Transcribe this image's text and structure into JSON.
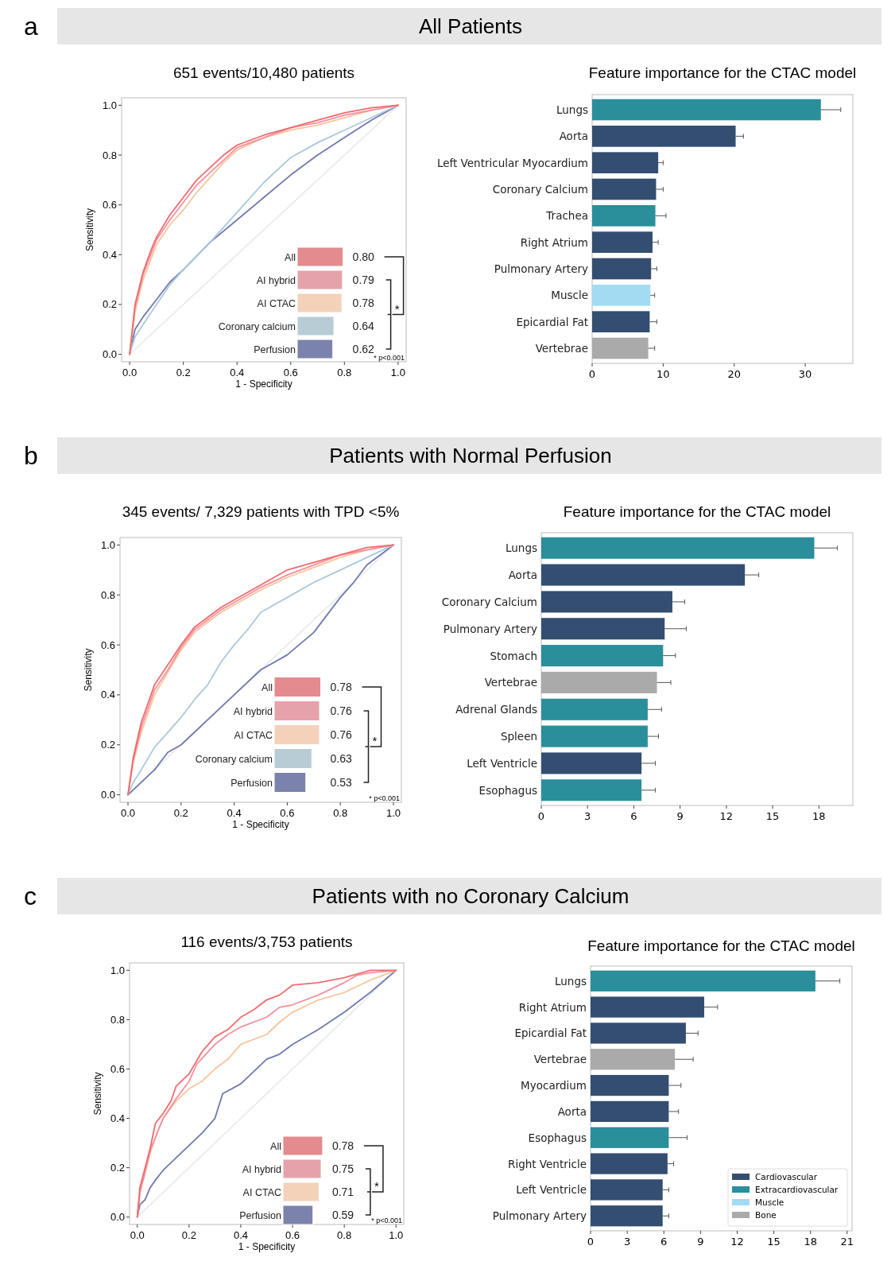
{
  "chart_data": [
    {
      "type": "line",
      "title": "651 events/10,480 patients",
      "xlabel": "1 - Specificity",
      "ylabel": "Sensitivity",
      "annotations": [
        "a",
        "All Patients"
      ],
      "xlim": [
        -0.03,
        1.03
      ],
      "ylim": [
        -0.03,
        1.03
      ],
      "xticks": [
        {
          "value": 0,
          "label": "0.0"
        },
        {
          "value": 0.2,
          "label": "0.2"
        },
        {
          "value": 0.4,
          "label": "0.4"
        },
        {
          "value": 0.6,
          "label": "0.6"
        },
        {
          "value": 0.8,
          "label": "0.8"
        },
        {
          "value": 1,
          "label": "1.0"
        }
      ],
      "yticks": [
        {
          "value": 0,
          "label": "0.0"
        },
        {
          "value": 0.2,
          "label": "0.2"
        },
        {
          "value": 0.4,
          "label": "0.4"
        },
        {
          "value": 0.6,
          "label": "0.6"
        },
        {
          "value": 0.8,
          "label": "0.8"
        },
        {
          "value": 1,
          "label": "1.0"
        }
      ],
      "series": [
        {
          "color": "#ebebeb",
          "x": [
            0,
            1
          ],
          "values": [
            0,
            1
          ]
        },
        {
          "color": "#7078b0",
          "x": [
            0,
            0.02,
            0.05,
            0.1,
            0.15,
            0.2,
            0.3,
            0.4,
            0.5,
            0.6,
            0.7,
            0.8,
            0.9,
            1
          ],
          "values": [
            0,
            0.1,
            0.15,
            0.22,
            0.29,
            0.34,
            0.45,
            0.54,
            0.63,
            0.72,
            0.8,
            0.87,
            0.94,
            1
          ]
        },
        {
          "color": "#a9c8da",
          "x": [
            0,
            0.02,
            0.05,
            0.1,
            0.15,
            0.2,
            0.3,
            0.4,
            0.5,
            0.6,
            0.7,
            0.8,
            0.9,
            1
          ],
          "values": [
            0,
            0.07,
            0.12,
            0.2,
            0.28,
            0.34,
            0.45,
            0.57,
            0.69,
            0.79,
            0.85,
            0.9,
            0.95,
            1
          ]
        },
        {
          "color": "#f8c49c",
          "x": [
            0,
            0.02,
            0.05,
            0.1,
            0.15,
            0.2,
            0.25,
            0.3,
            0.35,
            0.4,
            0.5,
            0.6,
            0.7,
            0.8,
            0.9,
            1
          ],
          "values": [
            0,
            0.17,
            0.3,
            0.44,
            0.52,
            0.58,
            0.65,
            0.71,
            0.77,
            0.82,
            0.87,
            0.9,
            0.92,
            0.95,
            0.98,
            1
          ]
        },
        {
          "color": "#f3909e",
          "x": [
            0,
            0.02,
            0.05,
            0.1,
            0.15,
            0.2,
            0.25,
            0.3,
            0.35,
            0.4,
            0.5,
            0.6,
            0.7,
            0.8,
            0.9,
            1
          ],
          "values": [
            0,
            0.19,
            0.32,
            0.46,
            0.54,
            0.61,
            0.68,
            0.73,
            0.78,
            0.83,
            0.87,
            0.91,
            0.93,
            0.96,
            0.98,
            1
          ]
        },
        {
          "color": "#f26a6e",
          "x": [
            0,
            0.02,
            0.05,
            0.08,
            0.1,
            0.15,
            0.2,
            0.25,
            0.3,
            0.35,
            0.4,
            0.5,
            0.6,
            0.7,
            0.8,
            0.9,
            1
          ],
          "values": [
            0,
            0.2,
            0.33,
            0.42,
            0.47,
            0.56,
            0.63,
            0.7,
            0.75,
            0.8,
            0.84,
            0.88,
            0.91,
            0.94,
            0.97,
            0.99,
            1
          ]
        }
      ]
    },
    {
      "type": "bar",
      "orientation": "horizontal",
      "categories": [
        "All",
        "AI hybrid",
        "AI CTAC",
        "Coronary calcium",
        "Perfusion"
      ],
      "values": [
        0.8,
        0.79,
        0.78,
        0.64,
        0.62
      ],
      "value_labels": [
        "0.80",
        "0.79",
        "0.78",
        "0.64",
        "0.62"
      ],
      "colors": [
        "#e38b8f",
        "#e6a2aa",
        "#f3d2b9",
        "#b8ccd6",
        "#7b83ac"
      ],
      "annotations": [
        "*",
        "* p<0.001"
      ]
    },
    {
      "type": "bar",
      "orientation": "horizontal",
      "title": "Feature importance for the CTAC model",
      "categories": [
        "Lungs",
        "Aorta",
        "Left Ventricular Myocardium",
        "Coronary Calcium",
        "Trachea",
        "Right Atrium",
        "Pulmonary Artery",
        "Muscle",
        "Epicardial Fat",
        "Vertebrae"
      ],
      "values": [
        32.2,
        20.2,
        9.3,
        9.0,
        8.9,
        8.5,
        8.3,
        8.2,
        8.1,
        7.9
      ],
      "errors": [
        2.8,
        1.1,
        0.7,
        1.0,
        1.5,
        0.8,
        0.8,
        0.6,
        1.0,
        0.9
      ],
      "colors": [
        "#2a8f9a",
        "#344e72",
        "#344e72",
        "#344e72",
        "#2a8f9a",
        "#344e72",
        "#344e72",
        "#a3dcf2",
        "#344e72",
        "#aaaaaa"
      ],
      "xlim": [
        0,
        36.7
      ],
      "xticks": [
        0,
        10,
        20,
        30
      ]
    },
    {
      "type": "line",
      "title": "345 events/ 7,329 patients with TPD <5%",
      "xlabel": "1 - Specificity",
      "ylabel": "Sensitivity",
      "annotations": [
        "b",
        "Patients with Normal Perfusion"
      ],
      "xlim": [
        -0.03,
        1.03
      ],
      "ylim": [
        -0.03,
        1.03
      ],
      "xticks": [
        {
          "value": 0,
          "label": "0.0"
        },
        {
          "value": 0.2,
          "label": "0.2"
        },
        {
          "value": 0.4,
          "label": "0.4"
        },
        {
          "value": 0.6,
          "label": "0.6"
        },
        {
          "value": 0.8,
          "label": "0.8"
        },
        {
          "value": 1,
          "label": "1.0"
        }
      ],
      "yticks": [
        {
          "value": 0,
          "label": "0.0"
        },
        {
          "value": 0.2,
          "label": "0.2"
        },
        {
          "value": 0.4,
          "label": "0.4"
        },
        {
          "value": 0.6,
          "label": "0.6"
        },
        {
          "value": 0.8,
          "label": "0.8"
        },
        {
          "value": 1,
          "label": "1.0"
        }
      ],
      "series": [
        {
          "color": "#ebebeb",
          "x": [
            0,
            1
          ],
          "values": [
            0,
            1
          ]
        },
        {
          "color": "#7078b0",
          "x": [
            0,
            0.05,
            0.1,
            0.15,
            0.2,
            0.3,
            0.4,
            0.5,
            0.6,
            0.7,
            0.75,
            0.8,
            0.85,
            0.9,
            0.95,
            1
          ],
          "values": [
            0,
            0.05,
            0.1,
            0.17,
            0.2,
            0.3,
            0.4,
            0.5,
            0.56,
            0.65,
            0.72,
            0.79,
            0.85,
            0.92,
            0.96,
            1
          ]
        },
        {
          "color": "#a9c8da",
          "x": [
            0,
            0.02,
            0.05,
            0.1,
            0.15,
            0.2,
            0.25,
            0.3,
            0.35,
            0.4,
            0.45,
            0.5,
            0.55,
            0.6,
            0.7,
            0.8,
            0.9,
            1
          ],
          "values": [
            0,
            0.05,
            0.1,
            0.19,
            0.25,
            0.31,
            0.38,
            0.44,
            0.53,
            0.6,
            0.66,
            0.73,
            0.76,
            0.79,
            0.85,
            0.9,
            0.95,
            1
          ]
        },
        {
          "color": "#f8c49c",
          "x": [
            0,
            0.02,
            0.05,
            0.1,
            0.15,
            0.2,
            0.25,
            0.3,
            0.35,
            0.4,
            0.5,
            0.6,
            0.7,
            0.8,
            0.9,
            1
          ],
          "values": [
            0,
            0.13,
            0.25,
            0.4,
            0.49,
            0.58,
            0.65,
            0.69,
            0.73,
            0.76,
            0.82,
            0.87,
            0.91,
            0.95,
            0.98,
            1
          ]
        },
        {
          "color": "#f3909e",
          "x": [
            0,
            0.02,
            0.05,
            0.1,
            0.15,
            0.2,
            0.25,
            0.3,
            0.35,
            0.4,
            0.5,
            0.6,
            0.7,
            0.8,
            0.9,
            1
          ],
          "values": [
            0,
            0.14,
            0.27,
            0.42,
            0.5,
            0.59,
            0.66,
            0.7,
            0.74,
            0.77,
            0.83,
            0.88,
            0.92,
            0.96,
            0.98,
            1
          ]
        },
        {
          "color": "#f26a6e",
          "x": [
            0,
            0.02,
            0.05,
            0.08,
            0.1,
            0.15,
            0.2,
            0.25,
            0.3,
            0.35,
            0.4,
            0.5,
            0.6,
            0.7,
            0.8,
            0.9,
            1
          ],
          "values": [
            0,
            0.15,
            0.29,
            0.38,
            0.44,
            0.52,
            0.6,
            0.67,
            0.71,
            0.75,
            0.78,
            0.84,
            0.9,
            0.93,
            0.96,
            0.99,
            1
          ]
        }
      ]
    },
    {
      "type": "bar",
      "orientation": "horizontal",
      "categories": [
        "All",
        "AI hybrid",
        "AI CTAC",
        "Coronary calcium",
        "Perfusion"
      ],
      "values": [
        0.78,
        0.76,
        0.76,
        0.63,
        0.53
      ],
      "value_labels": [
        "0.78",
        "0.76",
        "0.76",
        "0.63",
        "0.53"
      ],
      "colors": [
        "#e38b8f",
        "#e6a2aa",
        "#f3d2b9",
        "#b8ccd6",
        "#7b83ac"
      ],
      "annotations": [
        "*",
        "* p<0.001"
      ]
    },
    {
      "type": "bar",
      "orientation": "horizontal",
      "title": "Feature importance for the CTAC model",
      "categories": [
        "Lungs",
        "Aorta",
        "Coronary Calcium",
        "Pulmonary Artery",
        "Stomach",
        "Vertebrae",
        "Adrenal Glands",
        "Spleen",
        "Left Ventricle",
        "Esophagus"
      ],
      "values": [
        17.7,
        13.2,
        8.5,
        8.0,
        7.9,
        7.5,
        6.9,
        6.9,
        6.5,
        6.5
      ],
      "errors": [
        1.5,
        0.9,
        0.8,
        1.4,
        0.8,
        0.9,
        0.9,
        0.7,
        0.9,
        0.9
      ],
      "colors": [
        "#2a8f9a",
        "#344e72",
        "#344e72",
        "#344e72",
        "#2a8f9a",
        "#aaaaaa",
        "#2a8f9a",
        "#2a8f9a",
        "#344e72",
        "#2a8f9a"
      ],
      "xlim": [
        0,
        20.2
      ],
      "xticks": [
        0,
        3,
        6,
        9,
        12,
        15,
        18
      ]
    },
    {
      "type": "line",
      "title": "116 events/3,753 patients",
      "xlabel": "1 - Specificity",
      "ylabel": "Sensitivity",
      "annotations": [
        "c",
        "Patients with no Coronary Calcium"
      ],
      "xlim": [
        -0.03,
        1.03
      ],
      "ylim": [
        -0.03,
        1.03
      ],
      "xticks": [
        {
          "value": 0,
          "label": "0.0"
        },
        {
          "value": 0.2,
          "label": "0.2"
        },
        {
          "value": 0.4,
          "label": "0.4"
        },
        {
          "value": 0.6,
          "label": "0.6"
        },
        {
          "value": 0.8,
          "label": "0.8"
        },
        {
          "value": 1,
          "label": "1.0"
        }
      ],
      "yticks": [
        {
          "value": 0,
          "label": "0.0"
        },
        {
          "value": 0.2,
          "label": "0.2"
        },
        {
          "value": 0.4,
          "label": "0.4"
        },
        {
          "value": 0.6,
          "label": "0.6"
        },
        {
          "value": 0.8,
          "label": "0.8"
        },
        {
          "value": 1,
          "label": "1.0"
        }
      ],
      "series": [
        {
          "color": "#ebebeb",
          "x": [
            0,
            1
          ],
          "values": [
            0,
            1
          ]
        },
        {
          "color": "#7078b0",
          "x": [
            0,
            0.01,
            0.03,
            0.05,
            0.07,
            0.1,
            0.15,
            0.2,
            0.25,
            0.3,
            0.33,
            0.4,
            0.45,
            0.5,
            0.55,
            0.6,
            0.7,
            0.8,
            0.9,
            1
          ],
          "values": [
            0,
            0.05,
            0.07,
            0.12,
            0.15,
            0.19,
            0.24,
            0.29,
            0.34,
            0.4,
            0.5,
            0.54,
            0.59,
            0.64,
            0.66,
            0.7,
            0.76,
            0.83,
            0.91,
            1
          ]
        },
        {
          "color": "#f8c49c",
          "x": [
            0,
            0.01,
            0.03,
            0.05,
            0.08,
            0.1,
            0.15,
            0.2,
            0.25,
            0.3,
            0.35,
            0.4,
            0.5,
            0.55,
            0.6,
            0.7,
            0.8,
            0.9,
            1
          ],
          "values": [
            0,
            0.1,
            0.18,
            0.26,
            0.35,
            0.4,
            0.47,
            0.52,
            0.55,
            0.6,
            0.64,
            0.7,
            0.74,
            0.79,
            0.83,
            0.88,
            0.91,
            0.96,
            1
          ]
        },
        {
          "color": "#f3909e",
          "x": [
            0,
            0.01,
            0.03,
            0.05,
            0.08,
            0.1,
            0.15,
            0.2,
            0.23,
            0.3,
            0.35,
            0.4,
            0.5,
            0.55,
            0.6,
            0.7,
            0.8,
            0.85,
            0.9,
            1
          ],
          "values": [
            0,
            0.1,
            0.18,
            0.27,
            0.35,
            0.4,
            0.48,
            0.55,
            0.62,
            0.7,
            0.74,
            0.77,
            0.81,
            0.85,
            0.86,
            0.9,
            0.95,
            0.98,
            0.99,
            1
          ]
        },
        {
          "color": "#f26a6e",
          "x": [
            0,
            0.01,
            0.03,
            0.05,
            0.07,
            0.1,
            0.13,
            0.15,
            0.2,
            0.25,
            0.3,
            0.35,
            0.4,
            0.45,
            0.5,
            0.55,
            0.6,
            0.7,
            0.8,
            0.9,
            1
          ],
          "values": [
            0,
            0.12,
            0.2,
            0.28,
            0.38,
            0.42,
            0.47,
            0.53,
            0.58,
            0.67,
            0.73,
            0.76,
            0.81,
            0.84,
            0.88,
            0.9,
            0.94,
            0.95,
            0.97,
            1,
            1
          ]
        }
      ]
    },
    {
      "type": "bar",
      "orientation": "horizontal",
      "categories": [
        "All",
        "AI hybrid",
        "AI CTAC",
        "Perfusion"
      ],
      "values": [
        0.78,
        0.75,
        0.71,
        0.59
      ],
      "value_labels": [
        "0.78",
        "0.75",
        "0.71",
        "0.59"
      ],
      "colors": [
        "#e38b8f",
        "#e6a2aa",
        "#f3d2b9",
        "#7b83ac"
      ],
      "annotations": [
        "*",
        "* p<0.001"
      ]
    },
    {
      "type": "bar",
      "orientation": "horizontal",
      "title": "Feature importance for the CTAC model",
      "categories": [
        "Lungs",
        "Right Atrium",
        "Epicardial Fat",
        "Vertebrae",
        "Myocardium",
        "Aorta",
        "Esophagus",
        "Right Ventricle",
        "Left Ventricle",
        "Pulmonary Artery"
      ],
      "xlim": [
        0,
        21.4
      ],
      "xticks": [
        0,
        3,
        6,
        9,
        12,
        15,
        18,
        21
      ],
      "legend": "bottom right",
      "series": [
        {
          "name": "Cardiovascular",
          "color": "#344e72",
          "values": [
            null,
            9.3,
            7.8,
            null,
            6.4,
            6.4,
            null,
            6.3,
            5.9,
            5.9
          ],
          "errors": [
            null,
            1.1,
            1.0,
            null,
            1.0,
            0.8,
            null,
            0.5,
            0.5,
            0.5
          ]
        },
        {
          "name": "Extracardiovascular",
          "color": "#2a8f9a",
          "values": [
            18.4,
            null,
            null,
            null,
            null,
            null,
            6.4,
            null,
            null,
            null
          ],
          "errors": [
            2.0,
            null,
            null,
            null,
            null,
            null,
            1.5,
            null,
            null,
            null
          ]
        },
        {
          "name": "Muscle",
          "color": "#a3dcf2",
          "values": [
            null,
            null,
            null,
            null,
            null,
            null,
            null,
            null,
            null,
            null
          ]
        },
        {
          "name": "Bone",
          "color": "#aaaaaa",
          "values": [
            null,
            null,
            null,
            6.9,
            null,
            null,
            null,
            null,
            null,
            null
          ],
          "errors": [
            null,
            null,
            null,
            1.5,
            null,
            null,
            null,
            null,
            null,
            null
          ]
        }
      ]
    }
  ]
}
